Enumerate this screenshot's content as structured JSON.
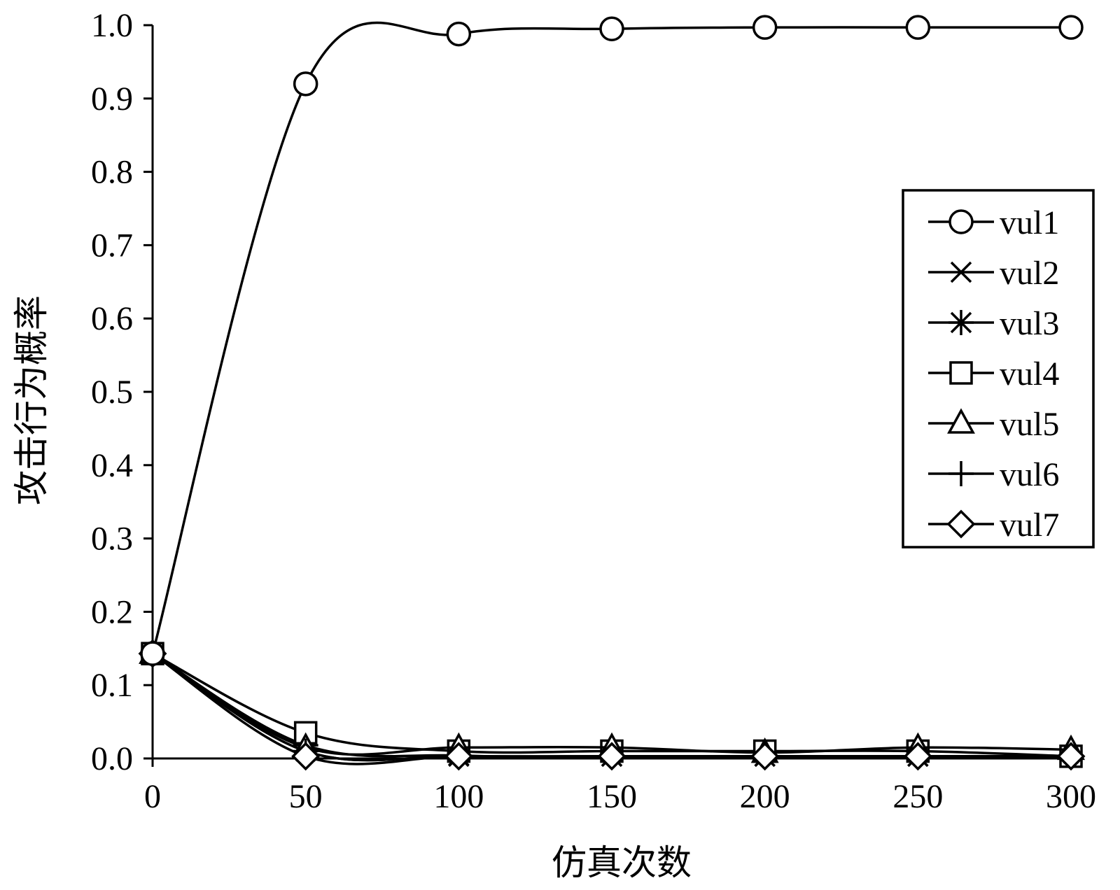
{
  "chart_data": {
    "type": "line",
    "title": "",
    "xlabel": "仿真次数",
    "ylabel": "攻击行为概率",
    "xlim": [
      0,
      300
    ],
    "ylim": [
      0,
      1.0
    ],
    "x_ticks": [
      "0",
      "50",
      "100",
      "150",
      "200",
      "250",
      "300"
    ],
    "y_ticks": [
      "0.0",
      "0.1",
      "0.2",
      "0.3",
      "0.4",
      "0.5",
      "0.6",
      "0.7",
      "0.8",
      "0.9",
      "1.0"
    ],
    "grid": false,
    "legend_position": "right",
    "x": [
      0,
      50,
      100,
      150,
      200,
      250,
      300
    ],
    "series": [
      {
        "name": "vul1",
        "marker": "circle",
        "values": [
          0.143,
          0.92,
          0.988,
          0.995,
          0.997,
          0.997,
          0.997
        ]
      },
      {
        "name": "vul2",
        "marker": "x",
        "values": [
          0.143,
          0.01,
          0.003,
          0.003,
          0.003,
          0.003,
          0.003
        ]
      },
      {
        "name": "vul3",
        "marker": "asterisk",
        "values": [
          0.143,
          0.018,
          0.004,
          0.003,
          0.003,
          0.003,
          0.003
        ]
      },
      {
        "name": "vul4",
        "marker": "square",
        "values": [
          0.143,
          0.035,
          0.01,
          0.01,
          0.01,
          0.01,
          0.003
        ]
      },
      {
        "name": "vul5",
        "marker": "triangle",
        "values": [
          0.143,
          0.015,
          0.015,
          0.015,
          0.008,
          0.015,
          0.012
        ]
      },
      {
        "name": "vul6",
        "marker": "plus",
        "values": [
          0.143,
          0.01,
          0.003,
          0.003,
          0.003,
          0.003,
          0.003
        ]
      },
      {
        "name": "vul7",
        "marker": "diamond",
        "values": [
          0.143,
          0.003,
          0.003,
          0.003,
          0.003,
          0.003,
          0.003
        ]
      }
    ]
  }
}
